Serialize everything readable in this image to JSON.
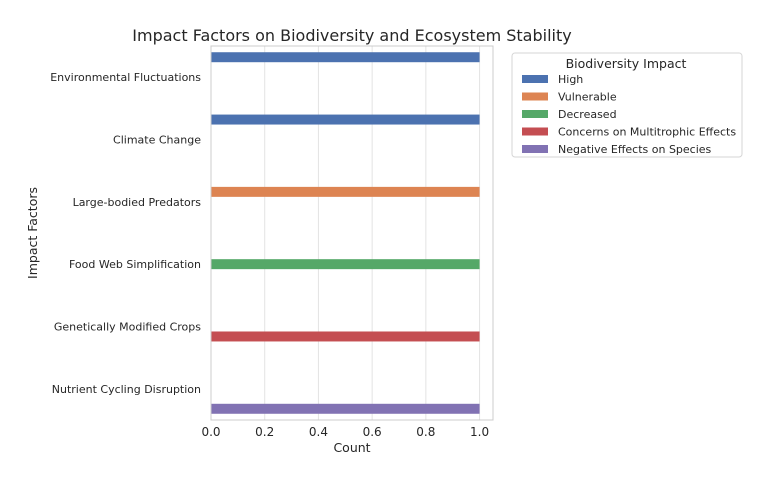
{
  "chart_data": {
    "type": "bar",
    "orientation": "horizontal",
    "title": "Impact Factors on Biodiversity and Ecosystem Stability",
    "xlabel": "Count",
    "ylabel": "Impact Factors",
    "xlim": [
      0,
      1.05
    ],
    "xticks": [
      "0.0",
      "0.2",
      "0.4",
      "0.6",
      "0.8",
      "1.0"
    ],
    "xtick_values": [
      0,
      0.2,
      0.4,
      0.6,
      0.8,
      1.0
    ],
    "grid": true,
    "legend_title": "Biodiversity Impact",
    "legend_placement": "outside-top-right",
    "categories": [
      "Environmental Fluctuations",
      "Climate Change",
      "Large-bodied Predators",
      "Food Web Simplification",
      "Genetically Modified Crops",
      "Nutrient Cycling Disruption"
    ],
    "series": [
      {
        "name": "High",
        "color": "#4c72b0",
        "values": [
          1,
          1,
          0,
          0,
          0,
          0
        ]
      },
      {
        "name": "Vulnerable",
        "color": "#dd8452",
        "values": [
          0,
          0,
          1,
          0,
          0,
          0
        ]
      },
      {
        "name": "Decreased",
        "color": "#55a868",
        "values": [
          0,
          0,
          0,
          1,
          0,
          0
        ]
      },
      {
        "name": "Concerns on Multitrophic Effects",
        "color": "#c44e52",
        "values": [
          0,
          0,
          0,
          0,
          1,
          0
        ]
      },
      {
        "name": "Negative Effects on Species",
        "color": "#8172b3",
        "values": [
          0,
          0,
          0,
          0,
          0,
          1
        ]
      }
    ]
  }
}
